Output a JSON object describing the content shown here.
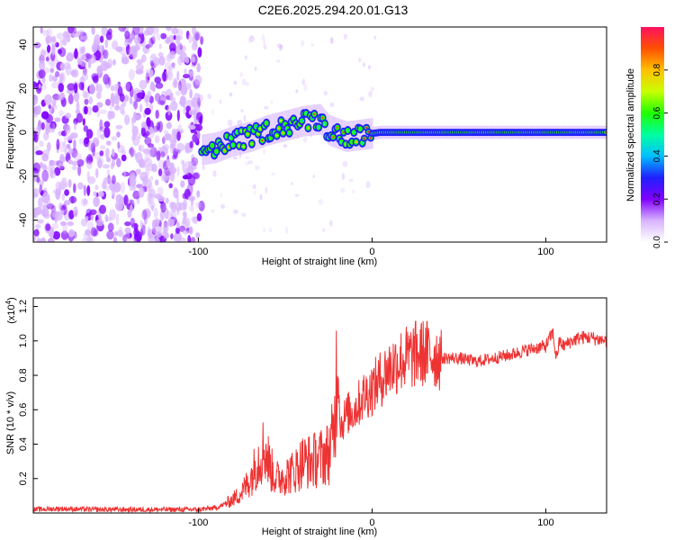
{
  "figure": {
    "title": "C2E6.2025.294.20.01.G13"
  },
  "chart_data": [
    {
      "type": "heatmap",
      "xlabel": "Height of straight line (km)",
      "ylabel": "Frequency (Hz)",
      "xlim": [
        -195,
        135
      ],
      "ylim": [
        -50,
        48
      ],
      "xticks": [
        -100,
        0,
        100
      ],
      "xtick_labels": [
        "-100",
        "0",
        "100"
      ],
      "yticks": [
        -40,
        -20,
        0,
        20,
        40
      ],
      "ytick_labels": [
        "-40",
        "-20",
        "0",
        "20",
        "40"
      ],
      "noise_region_x": [
        -195,
        -98
      ],
      "signal_track": [
        {
          "x": -98,
          "y": -8
        },
        {
          "x": -90,
          "y": -7
        },
        {
          "x": -80,
          "y": -4
        },
        {
          "x": -70,
          "y": -2
        },
        {
          "x": -60,
          "y": 1
        },
        {
          "x": -50,
          "y": 3
        },
        {
          "x": -40,
          "y": 5
        },
        {
          "x": -30,
          "y": 6
        },
        {
          "x": -25,
          "y": 1
        },
        {
          "x": -15,
          "y": -2
        },
        {
          "x": -5,
          "y": -1
        },
        {
          "x": 5,
          "y": 0
        },
        {
          "x": 135,
          "y": 0
        }
      ],
      "colorbar": {
        "label": "Normalized spectral amplitude",
        "ticks": [
          0.0,
          0.2,
          0.4,
          0.6,
          0.8
        ],
        "tick_labels": [
          "0.0",
          "0.2",
          "0.4",
          "0.6",
          "0.8"
        ],
        "range": [
          0,
          1
        ],
        "colors": [
          "#ffffff",
          "#d8b4ff",
          "#7f00ff",
          "#2020ff",
          "#00bfff",
          "#00ffa0",
          "#20ff00",
          "#c8ff00",
          "#ffc000",
          "#ff5000",
          "#ff1060"
        ]
      }
    },
    {
      "type": "line",
      "xlabel": "Height of straight line (km)",
      "ylabel": "SNR (10 * v/v)",
      "y_multiplier": "(x10",
      "y_multiplier_exp": "4",
      "y_multiplier_close": ")",
      "xlim": [
        -195,
        135
      ],
      "ylim": [
        0.0,
        1.25
      ],
      "xticks": [
        -100,
        0,
        100
      ],
      "xtick_labels": [
        "-100",
        "0",
        "100"
      ],
      "yticks": [
        0.2,
        0.4,
        0.6,
        0.8,
        1.0,
        1.2
      ],
      "ytick_labels": [
        "0.2",
        "0.4",
        "0.6",
        "0.8",
        "1.0",
        "1.2"
      ],
      "series": [
        {
          "name": "SNR",
          "color": "#ee3333",
          "x": [
            -195,
            -180,
            -160,
            -140,
            -120,
            -100,
            -90,
            -85,
            -80,
            -75,
            -70,
            -66,
            -62,
            -58,
            -55,
            -50,
            -45,
            -40,
            -35,
            -30,
            -25,
            -22,
            -20,
            -18,
            -16,
            -14,
            -10,
            -5,
            0,
            5,
            10,
            15,
            20,
            25,
            30,
            35,
            40,
            50,
            60,
            70,
            80,
            90,
            95,
            100,
            104,
            106,
            108,
            110,
            115,
            120,
            125,
            130,
            135
          ],
          "y": [
            0.02,
            0.025,
            0.02,
            0.02,
            0.02,
            0.02,
            0.03,
            0.05,
            0.08,
            0.12,
            0.2,
            0.3,
            0.38,
            0.25,
            0.2,
            0.22,
            0.24,
            0.3,
            0.3,
            0.32,
            0.35,
            0.45,
            0.9,
            0.5,
            0.55,
            0.58,
            0.6,
            0.68,
            0.72,
            0.78,
            0.84,
            0.88,
            0.9,
            0.92,
            0.93,
            0.92,
            0.9,
            0.9,
            0.88,
            0.9,
            0.92,
            0.95,
            0.96,
            0.97,
            1.05,
            0.9,
            1.0,
            0.97,
            1.0,
            1.02,
            1.02,
            1.01,
            1.0
          ]
        }
      ]
    }
  ]
}
